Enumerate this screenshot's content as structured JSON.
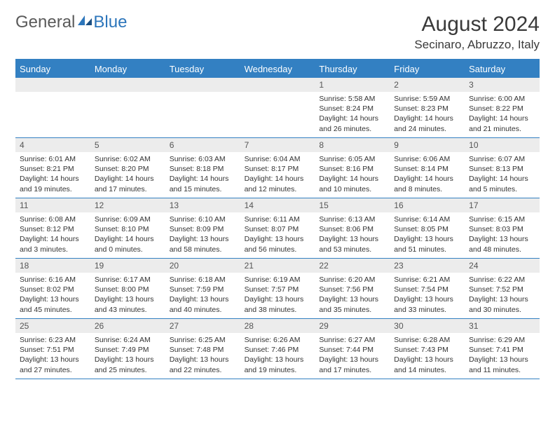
{
  "logo": {
    "part1": "General",
    "part2": "Blue"
  },
  "header": {
    "month_title": "August 2024",
    "location": "Secinaro, Abruzzo, Italy"
  },
  "styling": {
    "accent_color": "#3380c2",
    "daynum_bg": "#ececec",
    "page_bg": "#ffffff",
    "weekday_text": "#ffffff",
    "body_text": "#333333",
    "logo_gray": "#5a5a5a",
    "logo_blue": "#2d76bb",
    "month_title_fontsize": 30,
    "location_fontsize": 17,
    "weekday_fontsize": 13,
    "daynum_fontsize": 12,
    "body_fontsize": 10.5
  },
  "weekdays": [
    "Sunday",
    "Monday",
    "Tuesday",
    "Wednesday",
    "Thursday",
    "Friday",
    "Saturday"
  ],
  "weeks": [
    [
      {
        "n": "",
        "sunrise": "",
        "sunset": "",
        "daylight": ""
      },
      {
        "n": "",
        "sunrise": "",
        "sunset": "",
        "daylight": ""
      },
      {
        "n": "",
        "sunrise": "",
        "sunset": "",
        "daylight": ""
      },
      {
        "n": "",
        "sunrise": "",
        "sunset": "",
        "daylight": ""
      },
      {
        "n": "1",
        "sunrise": "Sunrise: 5:58 AM",
        "sunset": "Sunset: 8:24 PM",
        "daylight": "Daylight: 14 hours and 26 minutes."
      },
      {
        "n": "2",
        "sunrise": "Sunrise: 5:59 AM",
        "sunset": "Sunset: 8:23 PM",
        "daylight": "Daylight: 14 hours and 24 minutes."
      },
      {
        "n": "3",
        "sunrise": "Sunrise: 6:00 AM",
        "sunset": "Sunset: 8:22 PM",
        "daylight": "Daylight: 14 hours and 21 minutes."
      }
    ],
    [
      {
        "n": "4",
        "sunrise": "Sunrise: 6:01 AM",
        "sunset": "Sunset: 8:21 PM",
        "daylight": "Daylight: 14 hours and 19 minutes."
      },
      {
        "n": "5",
        "sunrise": "Sunrise: 6:02 AM",
        "sunset": "Sunset: 8:20 PM",
        "daylight": "Daylight: 14 hours and 17 minutes."
      },
      {
        "n": "6",
        "sunrise": "Sunrise: 6:03 AM",
        "sunset": "Sunset: 8:18 PM",
        "daylight": "Daylight: 14 hours and 15 minutes."
      },
      {
        "n": "7",
        "sunrise": "Sunrise: 6:04 AM",
        "sunset": "Sunset: 8:17 PM",
        "daylight": "Daylight: 14 hours and 12 minutes."
      },
      {
        "n": "8",
        "sunrise": "Sunrise: 6:05 AM",
        "sunset": "Sunset: 8:16 PM",
        "daylight": "Daylight: 14 hours and 10 minutes."
      },
      {
        "n": "9",
        "sunrise": "Sunrise: 6:06 AM",
        "sunset": "Sunset: 8:14 PM",
        "daylight": "Daylight: 14 hours and 8 minutes."
      },
      {
        "n": "10",
        "sunrise": "Sunrise: 6:07 AM",
        "sunset": "Sunset: 8:13 PM",
        "daylight": "Daylight: 14 hours and 5 minutes."
      }
    ],
    [
      {
        "n": "11",
        "sunrise": "Sunrise: 6:08 AM",
        "sunset": "Sunset: 8:12 PM",
        "daylight": "Daylight: 14 hours and 3 minutes."
      },
      {
        "n": "12",
        "sunrise": "Sunrise: 6:09 AM",
        "sunset": "Sunset: 8:10 PM",
        "daylight": "Daylight: 14 hours and 0 minutes."
      },
      {
        "n": "13",
        "sunrise": "Sunrise: 6:10 AM",
        "sunset": "Sunset: 8:09 PM",
        "daylight": "Daylight: 13 hours and 58 minutes."
      },
      {
        "n": "14",
        "sunrise": "Sunrise: 6:11 AM",
        "sunset": "Sunset: 8:07 PM",
        "daylight": "Daylight: 13 hours and 56 minutes."
      },
      {
        "n": "15",
        "sunrise": "Sunrise: 6:13 AM",
        "sunset": "Sunset: 8:06 PM",
        "daylight": "Daylight: 13 hours and 53 minutes."
      },
      {
        "n": "16",
        "sunrise": "Sunrise: 6:14 AM",
        "sunset": "Sunset: 8:05 PM",
        "daylight": "Daylight: 13 hours and 51 minutes."
      },
      {
        "n": "17",
        "sunrise": "Sunrise: 6:15 AM",
        "sunset": "Sunset: 8:03 PM",
        "daylight": "Daylight: 13 hours and 48 minutes."
      }
    ],
    [
      {
        "n": "18",
        "sunrise": "Sunrise: 6:16 AM",
        "sunset": "Sunset: 8:02 PM",
        "daylight": "Daylight: 13 hours and 45 minutes."
      },
      {
        "n": "19",
        "sunrise": "Sunrise: 6:17 AM",
        "sunset": "Sunset: 8:00 PM",
        "daylight": "Daylight: 13 hours and 43 minutes."
      },
      {
        "n": "20",
        "sunrise": "Sunrise: 6:18 AM",
        "sunset": "Sunset: 7:59 PM",
        "daylight": "Daylight: 13 hours and 40 minutes."
      },
      {
        "n": "21",
        "sunrise": "Sunrise: 6:19 AM",
        "sunset": "Sunset: 7:57 PM",
        "daylight": "Daylight: 13 hours and 38 minutes."
      },
      {
        "n": "22",
        "sunrise": "Sunrise: 6:20 AM",
        "sunset": "Sunset: 7:56 PM",
        "daylight": "Daylight: 13 hours and 35 minutes."
      },
      {
        "n": "23",
        "sunrise": "Sunrise: 6:21 AM",
        "sunset": "Sunset: 7:54 PM",
        "daylight": "Daylight: 13 hours and 33 minutes."
      },
      {
        "n": "24",
        "sunrise": "Sunrise: 6:22 AM",
        "sunset": "Sunset: 7:52 PM",
        "daylight": "Daylight: 13 hours and 30 minutes."
      }
    ],
    [
      {
        "n": "25",
        "sunrise": "Sunrise: 6:23 AM",
        "sunset": "Sunset: 7:51 PM",
        "daylight": "Daylight: 13 hours and 27 minutes."
      },
      {
        "n": "26",
        "sunrise": "Sunrise: 6:24 AM",
        "sunset": "Sunset: 7:49 PM",
        "daylight": "Daylight: 13 hours and 25 minutes."
      },
      {
        "n": "27",
        "sunrise": "Sunrise: 6:25 AM",
        "sunset": "Sunset: 7:48 PM",
        "daylight": "Daylight: 13 hours and 22 minutes."
      },
      {
        "n": "28",
        "sunrise": "Sunrise: 6:26 AM",
        "sunset": "Sunset: 7:46 PM",
        "daylight": "Daylight: 13 hours and 19 minutes."
      },
      {
        "n": "29",
        "sunrise": "Sunrise: 6:27 AM",
        "sunset": "Sunset: 7:44 PM",
        "daylight": "Daylight: 13 hours and 17 minutes."
      },
      {
        "n": "30",
        "sunrise": "Sunrise: 6:28 AM",
        "sunset": "Sunset: 7:43 PM",
        "daylight": "Daylight: 13 hours and 14 minutes."
      },
      {
        "n": "31",
        "sunrise": "Sunrise: 6:29 AM",
        "sunset": "Sunset: 7:41 PM",
        "daylight": "Daylight: 13 hours and 11 minutes."
      }
    ]
  ]
}
